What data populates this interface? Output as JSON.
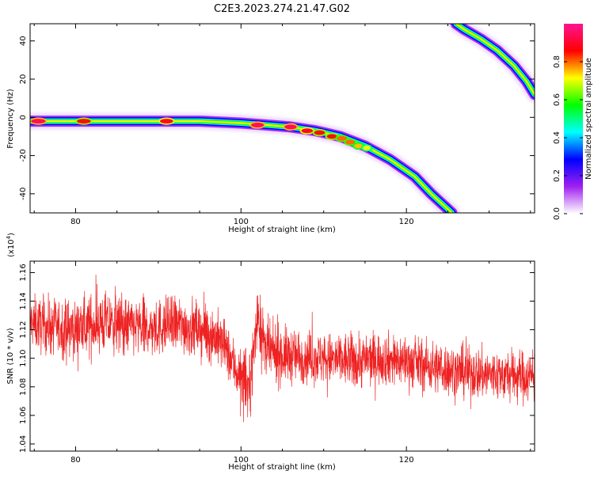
{
  "title": "C2E3.2023.274.21.47.G02",
  "chart_data": [
    {
      "type": "heatmap",
      "xlabel": "Height of straight line (km)",
      "ylabel": "Frequency (Hz)",
      "xlim": [
        74.5,
        135.5
      ],
      "ylim": [
        -50,
        49
      ],
      "xticks": [
        80,
        100,
        120
      ],
      "yticks": [
        -40,
        -20,
        0,
        20,
        40
      ],
      "colorbar": {
        "label": "Normalized spectral amplitude",
        "range": [
          0,
          1
        ],
        "ticks": [
          0.0,
          0.2,
          0.4,
          0.6,
          0.8
        ],
        "colormap": [
          "#ffffff",
          "#a020f0",
          "#0000ff",
          "#00ffff",
          "#00ff00",
          "#ffff00",
          "#ff0000",
          "#ff1493"
        ]
      },
      "tracks": [
        {
          "name": "",
          "points": [
            [
              74.5,
              -2
            ],
            [
              80,
              -2
            ],
            [
              85,
              -2
            ],
            [
              90,
              -2
            ],
            [
              95,
              -2
            ],
            [
              100,
              -3
            ],
            [
              103,
              -4
            ],
            [
              106,
              -5
            ],
            [
              109,
              -7
            ],
            [
              112,
              -10
            ],
            [
              115,
              -15
            ],
            [
              118,
              -22
            ],
            [
              121,
              -31
            ],
            [
              123,
              -40
            ],
            [
              125,
              -48
            ],
            [
              125.5,
              -50
            ]
          ]
        },
        {
          "name": "",
          "points": [
            [
              126,
              49
            ],
            [
              127,
              46
            ],
            [
              129,
              41
            ],
            [
              131,
              35
            ],
            [
              133,
              27
            ],
            [
              134.5,
              19
            ],
            [
              135.5,
              12
            ]
          ]
        }
      ],
      "peaks": [
        {
          "x": 75.5,
          "y": -2,
          "amplitude": 0.95
        },
        {
          "x": 81,
          "y": -2,
          "amplitude": 0.85
        },
        {
          "x": 91,
          "y": -2,
          "amplitude": 0.9
        },
        {
          "x": 102,
          "y": -4,
          "amplitude": 0.95
        },
        {
          "x": 106,
          "y": -5,
          "amplitude": 0.95
        },
        {
          "x": 108,
          "y": -7,
          "amplitude": 0.9
        },
        {
          "x": 109.5,
          "y": -8,
          "amplitude": 0.85
        },
        {
          "x": 111,
          "y": -10,
          "amplitude": 0.85
        },
        {
          "x": 112.2,
          "y": -11,
          "amplitude": 0.8
        },
        {
          "x": 113.2,
          "y": -13,
          "amplitude": 0.8
        },
        {
          "x": 114.2,
          "y": -15,
          "amplitude": 0.75
        },
        {
          "x": 115.2,
          "y": -16,
          "amplitude": 0.7
        }
      ]
    },
    {
      "type": "line",
      "xlabel": "Height of straight line (km)",
      "ylabel": "SNR (10 * v/v)",
      "yscale_label": "(x10",
      "yscale_exp": "4",
      "yscale_close": ")",
      "xlim": [
        74.5,
        135.5
      ],
      "ylim": [
        1.035,
        1.168
      ],
      "xticks": [
        80,
        100,
        120
      ],
      "yticks": [
        1.04,
        1.06,
        1.08,
        1.1,
        1.12,
        1.14,
        1.16
      ],
      "color": "#ee2222",
      "series": [
        {
          "name": "",
          "x": [
            74.5,
            77,
            80,
            83,
            86,
            89,
            92,
            95,
            97,
            98,
            99,
            100,
            101,
            102,
            103,
            105,
            108,
            111,
            114,
            117,
            120,
            123,
            126,
            129,
            132,
            135.5
          ],
          "y": [
            1.125,
            1.122,
            1.12,
            1.125,
            1.123,
            1.12,
            1.124,
            1.12,
            1.115,
            1.108,
            1.097,
            1.085,
            1.078,
            1.13,
            1.105,
            1.102,
            1.101,
            1.099,
            1.098,
            1.1,
            1.098,
            1.094,
            1.091,
            1.089,
            1.088,
            1.087
          ],
          "spread": [
            0.01,
            0.011,
            0.011,
            0.012,
            0.011,
            0.011,
            0.011,
            0.011,
            0.011,
            0.01,
            0.01,
            0.012,
            0.012,
            0.012,
            0.011,
            0.011,
            0.01,
            0.01,
            0.011,
            0.01,
            0.01,
            0.01,
            0.01,
            0.01,
            0.01,
            0.01
          ]
        }
      ]
    }
  ]
}
